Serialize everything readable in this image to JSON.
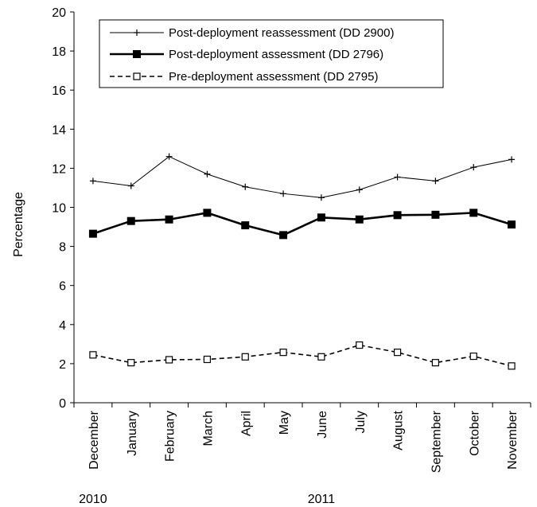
{
  "chart_data": {
    "type": "line",
    "title": "",
    "xlabel": "",
    "ylabel": "Percentage",
    "ylim": [
      0,
      20
    ],
    "yticks": [
      0,
      2,
      4,
      6,
      8,
      10,
      12,
      14,
      16,
      18,
      20
    ],
    "categories": [
      "December",
      "January",
      "February",
      "March",
      "April",
      "May",
      "June",
      "July",
      "August",
      "September",
      "October",
      "November"
    ],
    "year_labels": [
      {
        "text": "2010",
        "category": "December"
      },
      {
        "text": "2011",
        "category": "June"
      }
    ],
    "series": [
      {
        "name": "Post-deployment reassessment (DD 2900)",
        "marker": "plus",
        "line": "thin-solid",
        "values": [
          11.35,
          11.1,
          12.6,
          11.7,
          11.05,
          10.7,
          10.5,
          10.9,
          11.55,
          11.35,
          12.05,
          12.45
        ]
      },
      {
        "name": "Post-deployment assessment (DD 2796)",
        "marker": "filled-square",
        "line": "thick-solid",
        "values": [
          8.65,
          9.3,
          9.38,
          9.72,
          9.08,
          8.58,
          9.48,
          9.38,
          9.6,
          9.62,
          9.72,
          9.12
        ]
      },
      {
        "name": "Pre-deployment assessment (DD 2795)",
        "marker": "open-square",
        "line": "dashed",
        "values": [
          2.45,
          2.05,
          2.2,
          2.22,
          2.35,
          2.58,
          2.35,
          2.95,
          2.58,
          2.05,
          2.38,
          1.88
        ]
      }
    ],
    "legend_position": "top",
    "grid": false
  }
}
